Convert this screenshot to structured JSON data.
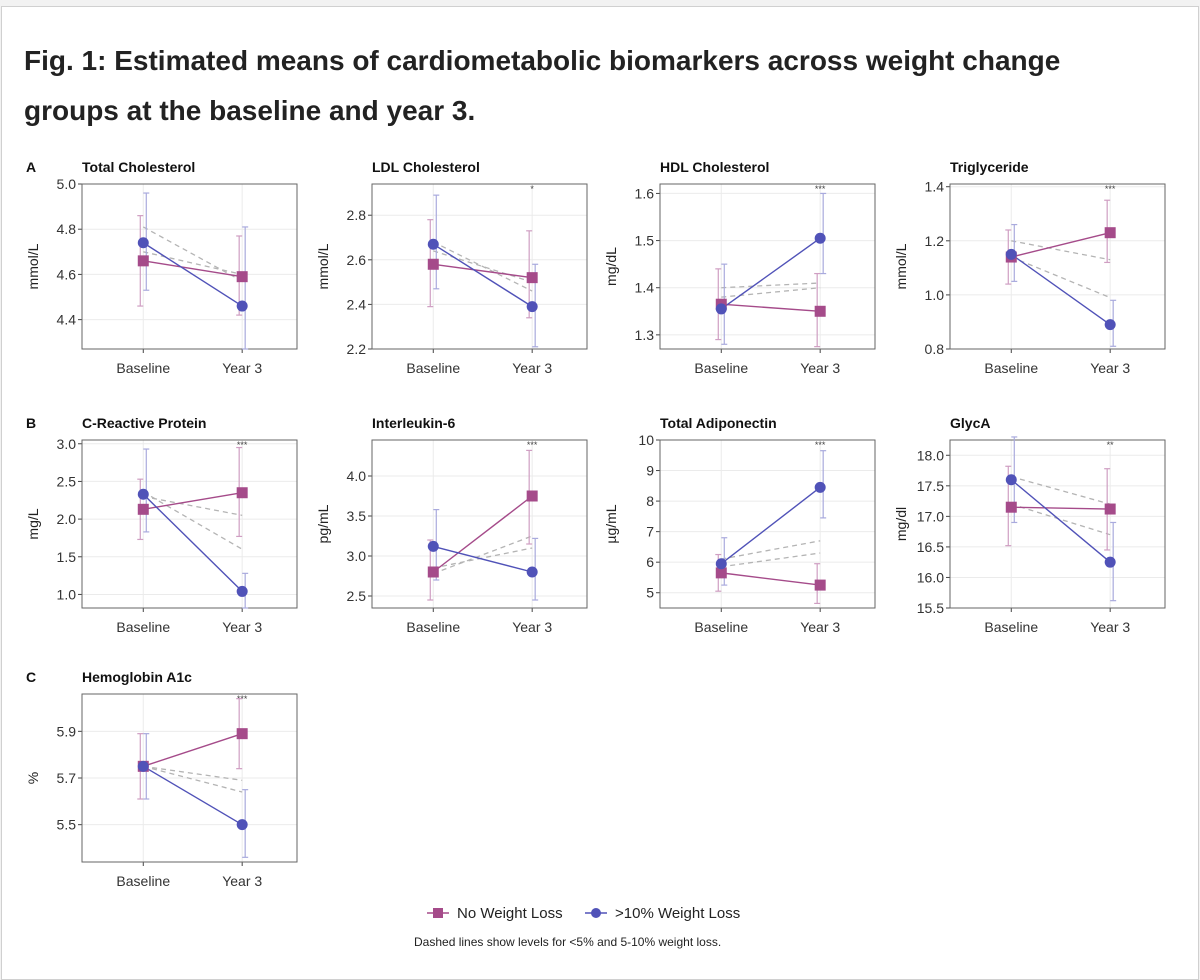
{
  "figure": {
    "title": "Fig. 1: Estimated means of cardiometabolic biomarkers across weight change groups at the baseline and year 3."
  },
  "colors": {
    "no_loss": "#a54b8a",
    "gt10_loss": "#5052b8",
    "dashed": "#b4b4b4",
    "error_no_loss": "#cf9ec2",
    "error_gt10": "#a9aadd",
    "grid": "#ebebeb",
    "frame": "#666666"
  },
  "legend": {
    "no_loss_label": "No Weight Loss",
    "gt10_label": ">10% Weight Loss",
    "note": "Dashed lines show levels for <5% and 5-10% weight loss."
  },
  "chart_data": [
    {
      "letter": "A",
      "title": "Total Cholesterol",
      "type": "line",
      "ylabel": "mmol/L",
      "categories": [
        "Baseline",
        "Year 3"
      ],
      "ylim": [
        4.27,
        5.0
      ],
      "yticks": [
        "4.4",
        "4.6",
        "4.8",
        "5.0"
      ],
      "sig": "",
      "series": [
        {
          "name": "No Weight Loss",
          "values": [
            4.66,
            4.59
          ],
          "err_low": [
            4.46,
            4.42
          ],
          "err_high": [
            4.86,
            4.77
          ]
        },
        {
          "name": ">10% Weight Loss",
          "values": [
            4.74,
            4.46
          ],
          "err_low": [
            4.53,
            4.27
          ],
          "err_high": [
            4.96,
            4.81
          ]
        },
        {
          "name": "<5% Weight Loss",
          "values": [
            4.7,
            4.6
          ]
        },
        {
          "name": "5-10% Weight Loss",
          "values": [
            4.81,
            4.57
          ]
        }
      ]
    },
    {
      "letter": "",
      "title": "LDL Cholesterol",
      "type": "line",
      "ylabel": "mmol/L",
      "categories": [
        "Baseline",
        "Year 3"
      ],
      "ylim": [
        2.2,
        2.94
      ],
      "yticks": [
        "2.2",
        "2.4",
        "2.6",
        "2.8"
      ],
      "sig": "*",
      "series": [
        {
          "name": "No Weight Loss",
          "values": [
            2.58,
            2.52
          ],
          "err_low": [
            2.39,
            2.34
          ],
          "err_high": [
            2.78,
            2.73
          ]
        },
        {
          "name": ">10% Weight Loss",
          "values": [
            2.67,
            2.39
          ],
          "err_low": [
            2.47,
            2.21
          ],
          "err_high": [
            2.89,
            2.58
          ]
        },
        {
          "name": "<5% Weight Loss",
          "values": [
            2.64,
            2.5
          ]
        },
        {
          "name": "5-10% Weight Loss",
          "values": [
            2.68,
            2.46
          ]
        }
      ]
    },
    {
      "letter": "",
      "title": "HDL Cholesterol",
      "type": "line",
      "ylabel": "mg/dL",
      "categories": [
        "Baseline",
        "Year 3"
      ],
      "ylim": [
        1.27,
        1.62
      ],
      "yticks": [
        "1.3",
        "1.4",
        "1.5",
        "1.6"
      ],
      "sig": "***",
      "series": [
        {
          "name": "No Weight Loss",
          "values": [
            1.365,
            1.35
          ],
          "err_low": [
            1.29,
            1.275
          ],
          "err_high": [
            1.44,
            1.43
          ]
        },
        {
          "name": ">10% Weight Loss",
          "values": [
            1.355,
            1.505
          ],
          "err_low": [
            1.28,
            1.43
          ],
          "err_high": [
            1.45,
            1.6
          ]
        },
        {
          "name": "<5% Weight Loss",
          "values": [
            1.38,
            1.4
          ]
        },
        {
          "name": "5-10% Weight Loss",
          "values": [
            1.4,
            1.41
          ]
        }
      ]
    },
    {
      "letter": "",
      "title": "Triglyceride",
      "type": "line",
      "ylabel": "mmol/L",
      "categories": [
        "Baseline",
        "Year 3"
      ],
      "ylim": [
        0.8,
        1.41
      ],
      "yticks": [
        "0.8",
        "1.0",
        "1.2",
        "1.4"
      ],
      "sig": "***",
      "series": [
        {
          "name": "No Weight Loss",
          "values": [
            1.14,
            1.23
          ],
          "err_low": [
            1.04,
            1.12
          ],
          "err_high": [
            1.24,
            1.35
          ]
        },
        {
          "name": ">10% Weight Loss",
          "values": [
            1.15,
            0.89
          ],
          "err_low": [
            1.05,
            0.81
          ],
          "err_high": [
            1.26,
            0.98
          ]
        },
        {
          "name": "<5% Weight Loss",
          "values": [
            1.2,
            1.13
          ]
        },
        {
          "name": "5-10% Weight Loss",
          "values": [
            1.14,
            0.99
          ]
        }
      ]
    },
    {
      "letter": "B",
      "title": "C-Reactive Protein",
      "type": "line",
      "ylabel": "mg/L",
      "categories": [
        "Baseline",
        "Year 3"
      ],
      "ylim": [
        0.82,
        3.05
      ],
      "yticks": [
        "1.0",
        "1.5",
        "2.0",
        "2.5",
        "3.0"
      ],
      "sig": "***",
      "series": [
        {
          "name": "No Weight Loss",
          "values": [
            2.13,
            2.35
          ],
          "err_low": [
            1.73,
            1.77
          ],
          "err_high": [
            2.53,
            2.95
          ]
        },
        {
          "name": ">10% Weight Loss",
          "values": [
            2.33,
            1.04
          ],
          "err_low": [
            1.83,
            0.82
          ],
          "err_high": [
            2.93,
            1.28
          ]
        },
        {
          "name": "<5% Weight Loss",
          "values": [
            2.3,
            2.05
          ]
        },
        {
          "name": "5-10% Weight Loss",
          "values": [
            2.36,
            1.6
          ]
        }
      ]
    },
    {
      "letter": "",
      "title": "Interleukin-6",
      "type": "line",
      "ylabel": "pg/mL",
      "categories": [
        "Baseline",
        "Year 3"
      ],
      "ylim": [
        2.35,
        4.45
      ],
      "yticks": [
        "2.5",
        "3.0",
        "3.5",
        "4.0"
      ],
      "sig": "***",
      "series": [
        {
          "name": "No Weight Loss",
          "values": [
            2.8,
            3.75
          ],
          "err_low": [
            2.45,
            3.15
          ],
          "err_high": [
            3.2,
            4.32
          ]
        },
        {
          "name": ">10% Weight Loss",
          "values": [
            3.12,
            2.8
          ],
          "err_low": [
            2.7,
            2.45
          ],
          "err_high": [
            3.58,
            3.22
          ]
        },
        {
          "name": "<5% Weight Loss",
          "values": [
            2.78,
            3.25
          ]
        },
        {
          "name": "5-10% Weight Loss",
          "values": [
            2.85,
            3.1
          ]
        }
      ]
    },
    {
      "letter": "",
      "title": "Total Adiponectin",
      "type": "line",
      "ylabel": "µg/mL",
      "categories": [
        "Baseline",
        "Year 3"
      ],
      "ylim": [
        4.5,
        10.0
      ],
      "yticks": [
        "5",
        "6",
        "7",
        "8",
        "9",
        "10"
      ],
      "sig": "***",
      "series": [
        {
          "name": "No Weight Loss",
          "values": [
            5.65,
            5.25
          ],
          "err_low": [
            5.05,
            4.65
          ],
          "err_high": [
            6.25,
            5.95
          ]
        },
        {
          "name": ">10% Weight Loss",
          "values": [
            5.95,
            8.45
          ],
          "err_low": [
            5.25,
            7.45
          ],
          "err_high": [
            6.8,
            9.65
          ]
        },
        {
          "name": "<5% Weight Loss",
          "values": [
            5.85,
            6.3
          ]
        },
        {
          "name": "5-10% Weight Loss",
          "values": [
            6.1,
            6.7
          ]
        }
      ]
    },
    {
      "letter": "",
      "title": "GlycA",
      "type": "line",
      "ylabel": "mg/dl",
      "categories": [
        "Baseline",
        "Year 3"
      ],
      "ylim": [
        15.5,
        18.25
      ],
      "yticks": [
        "15.5",
        "16.0",
        "16.5",
        "17.0",
        "17.5",
        "18.0"
      ],
      "sig": "**",
      "series": [
        {
          "name": "No Weight Loss",
          "values": [
            17.15,
            17.12
          ],
          "err_low": [
            16.52,
            16.45
          ],
          "err_high": [
            17.82,
            17.78
          ]
        },
        {
          "name": ">10% Weight Loss",
          "values": [
            17.6,
            16.25
          ],
          "err_low": [
            16.9,
            15.62
          ],
          "err_high": [
            18.3,
            16.9
          ]
        },
        {
          "name": "<5% Weight Loss",
          "values": [
            17.65,
            17.2
          ]
        },
        {
          "name": "5-10% Weight Loss",
          "values": [
            17.2,
            16.7
          ]
        }
      ]
    },
    {
      "letter": "C",
      "title": "Hemoglobin A1c",
      "type": "line",
      "ylabel": "%",
      "categories": [
        "Baseline",
        "Year 3"
      ],
      "ylim": [
        5.34,
        6.06
      ],
      "yticks": [
        "5.5",
        "5.7",
        "5.9"
      ],
      "sig": "***",
      "series": [
        {
          "name": "No Weight Loss",
          "values": [
            5.75,
            5.89
          ],
          "err_low": [
            5.61,
            5.74
          ],
          "err_high": [
            5.89,
            6.04
          ]
        },
        {
          "name": ">10% Weight Loss",
          "values": [
            5.75,
            5.5
          ],
          "err_low": [
            5.61,
            5.36
          ],
          "err_high": [
            5.89,
            5.65
          ]
        },
        {
          "name": "<5% Weight Loss",
          "values": [
            5.75,
            5.69
          ]
        },
        {
          "name": "5-10% Weight Loss",
          "values": [
            5.75,
            5.64
          ]
        }
      ]
    }
  ]
}
